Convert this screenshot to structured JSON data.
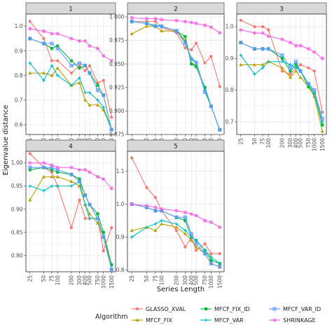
{
  "chart_data": {
    "type": "line",
    "facet_by": "1-5",
    "xlabel": "Series Length",
    "ylabel": "Eigenvalue distance",
    "x": [
      25,
      50,
      75,
      100,
      200,
      300,
      400,
      500,
      750,
      1000,
      1500
    ],
    "x_tick_labels": [
      "25",
      "50",
      "75",
      "100",
      "200",
      "300",
      "400",
      "500",
      "750",
      "1000",
      "1500"
    ],
    "x_scale": "log",
    "grid": true,
    "legend": {
      "title": "Algorithm",
      "position": "bottom",
      "entries": [
        "GLASSO_XVAL",
        "MFCF_FIX",
        "MFCF_FIX_ID",
        "MFCF_VAR",
        "MFCF_VAR_ID",
        "SHRINKAGE"
      ]
    },
    "colors": {
      "GLASSO_XVAL": "#f8766d",
      "MFCF_FIX": "#b79f00",
      "MFCF_FIX_ID": "#00ba38",
      "MFCF_VAR": "#00bfc4",
      "MFCF_VAR_ID": "#619cff",
      "SHRINKAGE": "#f564e3"
    },
    "panels": [
      {
        "label": "1",
        "ylim": [
          0.56,
          1.05
        ],
        "yticks": [
          0.6,
          0.7,
          0.8,
          0.9,
          1.0
        ],
        "ytick_labels": [
          "0.6",
          "0.7",
          "0.8",
          "0.9",
          "1.0"
        ],
        "series": [
          {
            "name": "GLASSO_XVAL",
            "values": [
              1.02,
              0.95,
              0.86,
              0.86,
              0.81,
              0.84,
              0.82,
              0.84,
              0.77,
              0.78,
              0.63
            ]
          },
          {
            "name": "MFCF_FIX",
            "values": [
              0.81,
              0.81,
              0.8,
              0.83,
              0.76,
              0.77,
              0.7,
              0.68,
              0.68,
              0.66,
              0.58
            ]
          },
          {
            "name": "MFCF_FIX_ID",
            "values": [
              0.95,
              0.93,
              0.91,
              0.92,
              0.86,
              0.83,
              0.84,
              0.81,
              0.76,
              0.72,
              0.58
            ]
          },
          {
            "name": "MFCF_VAR",
            "values": [
              0.85,
              0.78,
              0.84,
              0.8,
              0.76,
              0.79,
              0.73,
              0.73,
              0.7,
              0.67,
              0.58
            ]
          },
          {
            "name": "MFCF_VAR_ID",
            "values": [
              0.95,
              0.93,
              0.93,
              0.91,
              0.84,
              0.85,
              0.84,
              0.81,
              0.74,
              0.72,
              0.58
            ]
          },
          {
            "name": "SHRINKAGE",
            "values": [
              0.99,
              0.98,
              0.97,
              0.97,
              0.95,
              0.94,
              0.94,
              0.92,
              0.91,
              0.88,
              0.86
            ]
          }
        ]
      },
      {
        "label": "2",
        "ylim": [
          0.875,
          1.003
        ],
        "yticks": [
          0.875,
          0.9,
          0.925,
          0.95,
          0.975,
          1.0
        ],
        "ytick_labels": [
          "0.875",
          "0.900",
          "0.925",
          "0.950",
          "0.975",
          "1.000"
        ],
        "series": [
          {
            "name": "GLASSO_XVAL",
            "values": [
              0.995,
              0.995,
              0.995,
              0.989,
              0.983,
              0.967,
              0.965,
              0.972,
              0.951,
              0.958,
              0.926
            ]
          },
          {
            "name": "MFCF_FIX",
            "values": [
              0.982,
              0.99,
              0.99,
              0.985,
              0.985,
              0.975,
              0.951,
              0.948,
              0.922,
              0.905,
              0.88
            ]
          },
          {
            "name": "MFCF_FIX_ID",
            "values": [
              0.995,
              0.993,
              0.99,
              0.99,
              0.985,
              0.979,
              0.95,
              0.947,
              0.925,
              0.905,
              0.88
            ]
          },
          {
            "name": "MFCF_VAR",
            "values": [
              0.995,
              0.993,
              0.991,
              0.99,
              0.985,
              0.973,
              0.956,
              0.952,
              0.922,
              0.905,
              0.88
            ]
          },
          {
            "name": "MFCF_VAR_ID",
            "values": [
              0.995,
              0.993,
              0.99,
              0.99,
              0.985,
              0.972,
              0.955,
              0.951,
              0.92,
              0.905,
              0.88
            ]
          },
          {
            "name": "SHRINKAGE",
            "values": [
              0.999,
              0.998,
              0.998,
              0.997,
              0.996,
              0.995,
              0.994,
              0.993,
              0.991,
              0.989,
              0.983
            ]
          }
        ]
      },
      {
        "label": "3",
        "ylim": [
          0.66,
          1.04
        ],
        "yticks": [
          0.7,
          0.8,
          0.9,
          1.0
        ],
        "ytick_labels": [
          "0.7",
          "0.8",
          "0.9",
          "1.0"
        ],
        "series": [
          {
            "name": "GLASSO_XVAL",
            "values": [
              1.02,
              1.0,
              1.0,
              0.99,
              0.86,
              0.85,
              0.87,
              0.88,
              0.87,
              0.86,
              0.73
            ]
          },
          {
            "name": "MFCF_FIX",
            "values": [
              0.88,
              0.88,
              0.88,
              0.89,
              0.87,
              0.84,
              0.86,
              0.84,
              0.81,
              0.78,
              0.67
            ]
          },
          {
            "name": "MFCF_FIX_ID",
            "values": [
              0.95,
              0.93,
              0.93,
              0.93,
              0.9,
              0.86,
              0.88,
              0.86,
              0.81,
              0.79,
              0.69
            ]
          },
          {
            "name": "MFCF_VAR",
            "values": [
              0.91,
              0.85,
              0.87,
              0.89,
              0.89,
              0.88,
              0.87,
              0.86,
              0.82,
              0.79,
              0.7
            ]
          },
          {
            "name": "MFCF_VAR_ID",
            "values": [
              0.95,
              0.93,
              0.93,
              0.93,
              0.91,
              0.87,
              0.89,
              0.86,
              0.82,
              0.8,
              0.71
            ]
          },
          {
            "name": "SHRINKAGE",
            "values": [
              0.99,
              0.98,
              0.98,
              0.97,
              0.96,
              0.95,
              0.94,
              0.94,
              0.93,
              0.92,
              0.9
            ]
          }
        ]
      },
      {
        "label": "4",
        "ylim": [
          0.765,
          1.025
        ],
        "yticks": [
          0.8,
          0.85,
          0.9,
          0.95,
          1.0
        ],
        "ytick_labels": [
          "0.80",
          "0.85",
          "0.90",
          "0.95",
          "1.00"
        ],
        "series": [
          {
            "name": "GLASSO_XVAL",
            "values": [
              1.02,
              0.99,
              0.98,
              0.95,
              0.86,
              0.92,
              0.88,
              0.88,
              0.88,
              0.81,
              0.86
            ]
          },
          {
            "name": "MFCF_FIX",
            "values": [
              0.92,
              0.97,
              0.97,
              0.97,
              0.96,
              0.95,
              0.91,
              0.89,
              0.87,
              0.84,
              0.78
            ]
          },
          {
            "name": "MFCF_FIX_ID",
            "values": [
              0.985,
              0.99,
              0.985,
              0.98,
              0.975,
              0.965,
              0.93,
              0.91,
              0.89,
              0.85,
              0.78
            ]
          },
          {
            "name": "MFCF_VAR",
            "values": [
              0.95,
              0.94,
              0.95,
              0.95,
              0.95,
              0.96,
              0.91,
              0.88,
              0.88,
              0.84,
              0.77
            ]
          },
          {
            "name": "MFCF_VAR_ID",
            "values": [
              0.99,
              0.99,
              0.99,
              0.985,
              0.975,
              0.96,
              0.93,
              0.91,
              0.88,
              0.84,
              0.77
            ]
          },
          {
            "name": "SHRINKAGE",
            "values": [
              1.0,
              1.0,
              0.995,
              0.99,
              0.99,
              0.985,
              0.985,
              0.98,
              0.97,
              0.965,
              0.945
            ]
          }
        ]
      },
      {
        "label": "5",
        "ylim": [
          0.795,
          1.16
        ],
        "yticks": [
          0.8,
          0.9,
          1.0,
          1.1
        ],
        "ytick_labels": [
          "0.8",
          "0.9",
          "1.0",
          "1.1"
        ],
        "series": [
          {
            "name": "GLASSO_XVAL",
            "values": [
              1.14,
              1.05,
              1.02,
              0.98,
              0.92,
              0.87,
              0.9,
              0.86,
              0.88,
              0.85,
              0.85
            ]
          },
          {
            "name": "MFCF_FIX",
            "values": [
              0.92,
              0.93,
              0.92,
              0.94,
              0.93,
              0.91,
              0.89,
              0.87,
              0.85,
              0.82,
              0.81
            ]
          },
          {
            "name": "MFCF_FIX_ID",
            "values": [
              1.0,
              0.99,
              0.98,
              0.98,
              0.96,
              0.95,
              0.9,
              0.89,
              0.86,
              0.83,
              0.82
            ]
          },
          {
            "name": "MFCF_VAR",
            "values": [
              0.9,
              0.93,
              0.94,
              0.95,
              0.94,
              0.92,
              0.9,
              0.89,
              0.86,
              0.84,
              0.82
            ]
          },
          {
            "name": "MFCF_VAR_ID",
            "values": [
              1.0,
              0.99,
              0.98,
              0.98,
              0.96,
              0.96,
              0.91,
              0.88,
              0.85,
              0.82,
              0.81
            ]
          },
          {
            "name": "SHRINKAGE",
            "values": [
              1.0,
              0.995,
              0.99,
              0.985,
              0.98,
              0.975,
              0.97,
              0.965,
              0.95,
              0.945,
              0.93
            ]
          }
        ]
      }
    ]
  }
}
